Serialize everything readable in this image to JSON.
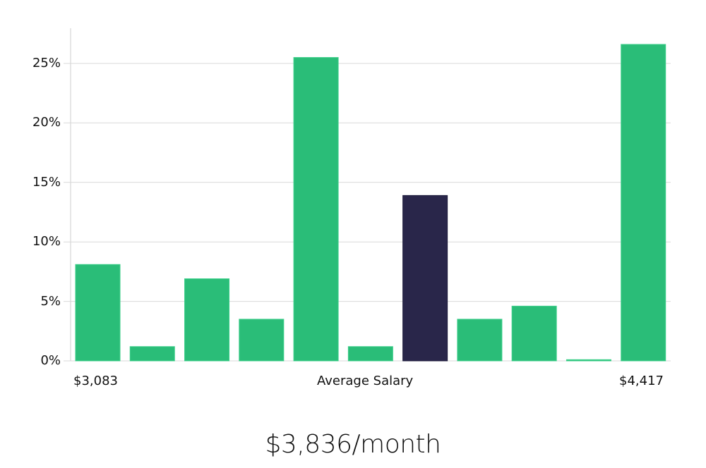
{
  "chart_data": {
    "type": "bar",
    "title": "",
    "xlabel": "Average Salary",
    "ylabel": "",
    "categories": [
      "bin1",
      "bin2",
      "bin3",
      "bin4",
      "bin5",
      "bin6",
      "bin7",
      "bin8",
      "bin9",
      "bin10",
      "bin11"
    ],
    "values": [
      8.1,
      1.2,
      6.9,
      3.5,
      25.5,
      1.2,
      13.9,
      3.5,
      4.6,
      0.1,
      26.6
    ],
    "highlight_index": 6,
    "ylim": [
      0,
      28
    ],
    "yticks": [
      "0%",
      "5%",
      "10%",
      "15%",
      "20%",
      "25%"
    ],
    "ytick_values": [
      0,
      5,
      10,
      15,
      20,
      25
    ],
    "x_min_label": "$3,083",
    "x_max_label": "$4,417",
    "grid": true,
    "legend": null
  },
  "colors": {
    "bar": "#2abd78",
    "highlight": "#29264a",
    "grid": "#d9d9d9",
    "axis": "#cccccc"
  },
  "labels": {
    "x_min": "$3,083",
    "x_center": "Average Salary",
    "x_max": "$4,417",
    "headline": "$3,836/month"
  }
}
